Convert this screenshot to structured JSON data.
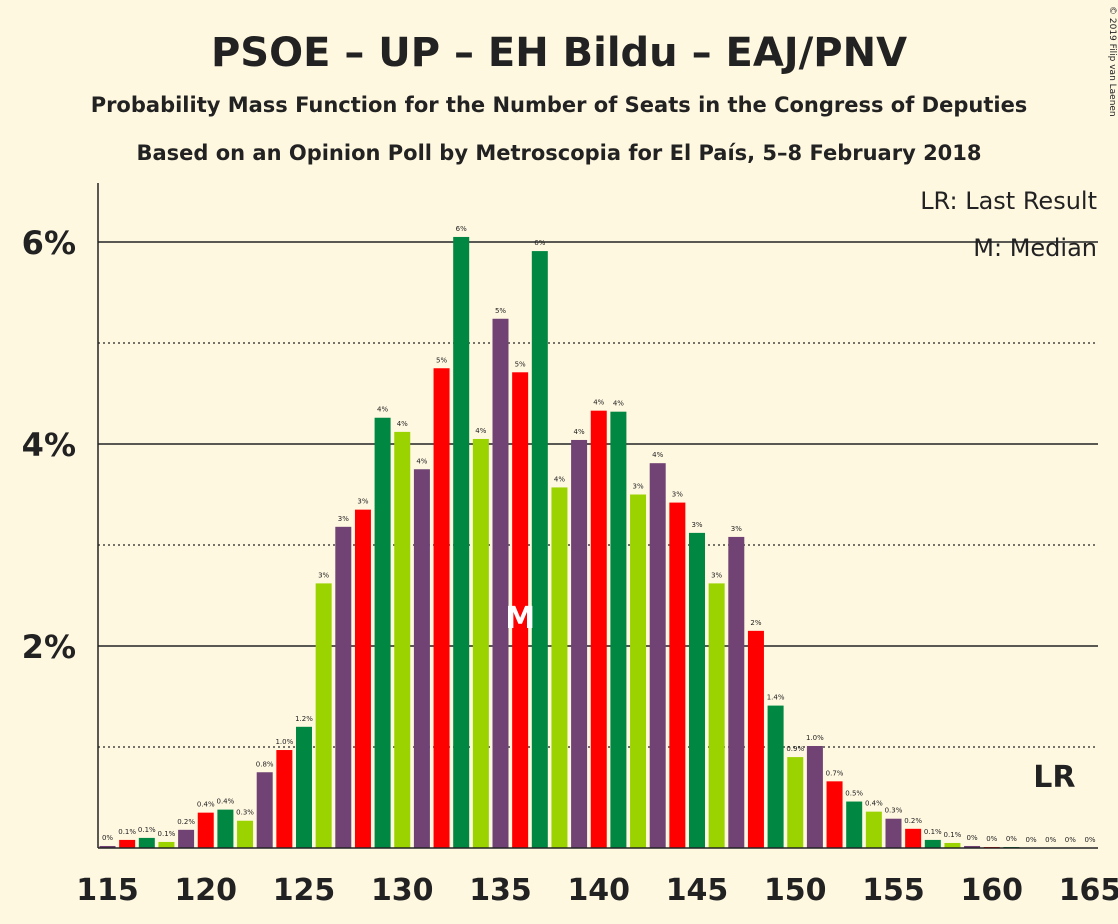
{
  "header": {
    "title": "PSOE – UP – EH Bildu – EAJ/PNV",
    "subtitle1": "Probability Mass Function for the Number of Seats in the Congress of Deputies",
    "subtitle2": "Based on an Opinion Poll by Metroscopia for El País, 5–8 February 2018",
    "copyright": "© 2019 Filip van Laenen"
  },
  "legend": {
    "lr": "LR: Last Result",
    "m": "M: Median"
  },
  "markers": {
    "median_label": "M",
    "median_seat": 136,
    "lr_label": "LR",
    "lr_seat": 164
  },
  "colors": {
    "background": "#FFF8E1",
    "purple": "#714374",
    "red": "#FF0000",
    "green": "#008741",
    "lime": "#9BD300",
    "text": "#222222"
  },
  "chart_data": {
    "type": "bar",
    "x": [
      115,
      116,
      117,
      118,
      119,
      120,
      121,
      122,
      123,
      124,
      125,
      126,
      127,
      128,
      129,
      130,
      131,
      132,
      133,
      134,
      135,
      136,
      137,
      138,
      139,
      140,
      141,
      142,
      143,
      144,
      145,
      146,
      147,
      148,
      149,
      150,
      151,
      152,
      153,
      154,
      155,
      156,
      157,
      158,
      159,
      160,
      161,
      162,
      163,
      164,
      165
    ],
    "values": [
      0.02,
      0.08,
      0.1,
      0.06,
      0.18,
      0.35,
      0.38,
      0.27,
      0.75,
      0.97,
      1.2,
      2.62,
      3.18,
      3.35,
      4.26,
      4.12,
      3.75,
      4.75,
      6.05,
      4.05,
      5.24,
      4.71,
      5.91,
      3.57,
      4.04,
      4.33,
      4.32,
      3.5,
      3.81,
      3.42,
      3.12,
      2.62,
      3.08,
      2.15,
      1.41,
      0.9,
      1.01,
      0.66,
      0.46,
      0.36,
      0.29,
      0.19,
      0.08,
      0.05,
      0.02,
      0.01,
      0.01,
      0.0,
      0.0,
      0.0,
      0.0
    ],
    "labels": [
      "0%",
      "0.1%",
      "0.1%",
      "0.1%",
      "0.2%",
      "0.4%",
      "0.4%",
      "0.3%",
      "0.8%",
      "1.0%",
      "1.2%",
      "3%",
      "3%",
      "3%",
      "4%",
      "4%",
      "4%",
      "5%",
      "6%",
      "4%",
      "5%",
      "5%",
      "6%",
      "4%",
      "4%",
      "4%",
      "4%",
      "3%",
      "4%",
      "3%",
      "3%",
      "3%",
      "3%",
      "2%",
      "1.4%",
      "0.9%",
      "1.0%",
      "0.7%",
      "0.5%",
      "0.4%",
      "0.3%",
      "0.2%",
      "0.1%",
      "0.1%",
      "0%",
      "0%",
      "0%",
      "0%",
      "0%",
      "0%",
      "0%"
    ],
    "x_ticks": [
      "115",
      "120",
      "125",
      "130",
      "135",
      "140",
      "145",
      "150",
      "155",
      "160",
      "165"
    ],
    "y_ticks": [
      "2%",
      "4%",
      "6%"
    ],
    "ylim": [
      0,
      6.6
    ],
    "grid": "solid lines at 2% steps, dotted lines at 1% odd steps"
  }
}
